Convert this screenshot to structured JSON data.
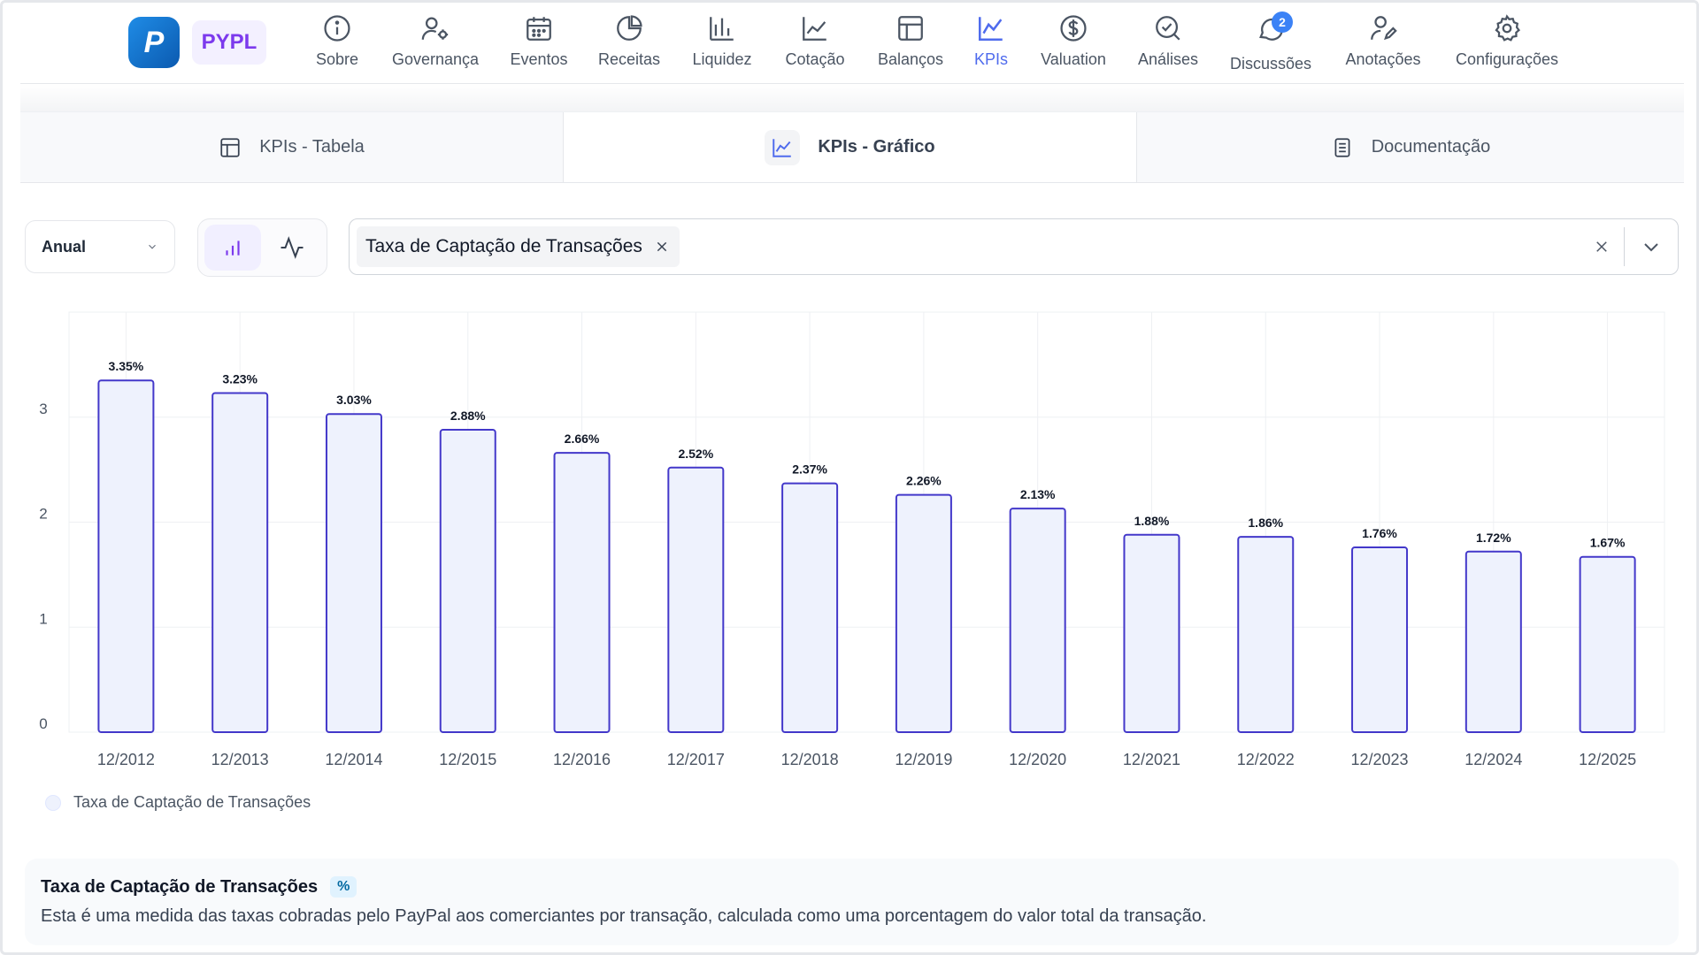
{
  "app": {
    "ticker": "PYPL",
    "logo_letter": "P"
  },
  "nav": {
    "items": [
      {
        "label": "Sobre",
        "icon": "info-icon"
      },
      {
        "label": "Governança",
        "icon": "user-gear-icon"
      },
      {
        "label": "Eventos",
        "icon": "calendar-icon"
      },
      {
        "label": "Receitas",
        "icon": "pie-chart-icon"
      },
      {
        "label": "Liquidez",
        "icon": "bar-chart-icon"
      },
      {
        "label": "Cotação",
        "icon": "line-chart-icon"
      },
      {
        "label": "Balanços",
        "icon": "layout-icon"
      },
      {
        "label": "KPIs",
        "icon": "kpi-chart-icon",
        "active": true
      },
      {
        "label": "Valuation",
        "icon": "dollar-circle-icon"
      },
      {
        "label": "Análises",
        "icon": "search-check-icon"
      },
      {
        "label": "Discussões",
        "icon": "chat-icon",
        "badge": "2"
      },
      {
        "label": "Anotações",
        "icon": "user-pen-icon"
      },
      {
        "label": "Configurações",
        "icon": "gear-icon"
      }
    ]
  },
  "tabs": [
    {
      "label": "KPIs - Tabela",
      "icon": "table-icon"
    },
    {
      "label": "KPIs - Gráfico",
      "icon": "chart-icon",
      "active": true
    },
    {
      "label": "Documentação",
      "icon": "document-icon"
    }
  ],
  "controls": {
    "period": "Anual",
    "selected_kpi": "Taxa de Captação de Transações"
  },
  "colors": {
    "bar_fill": "#eef2fd",
    "bar_stroke": "#4338ca",
    "accent": "#4f6bed",
    "grid": "#eef0f3"
  },
  "chart_data": {
    "type": "bar",
    "categories": [
      "12/2012",
      "12/2013",
      "12/2014",
      "12/2015",
      "12/2016",
      "12/2017",
      "12/2018",
      "12/2019",
      "12/2020",
      "12/2021",
      "12/2022",
      "12/2023",
      "12/2024",
      "12/2025"
    ],
    "series": [
      {
        "name": "Taxa de Captação de Transações",
        "values": [
          3.35,
          3.23,
          3.03,
          2.88,
          2.66,
          2.52,
          2.37,
          2.26,
          2.13,
          1.88,
          1.86,
          1.76,
          1.72,
          1.67
        ],
        "labels": [
          "3.35%",
          "3.23%",
          "3.03%",
          "2.88%",
          "2.66%",
          "2.52%",
          "2.37%",
          "2.26%",
          "2.13%",
          "1.88%",
          "1.86%",
          "1.76%",
          "1.72%",
          "1.67%"
        ]
      }
    ],
    "yticks": [
      "0",
      "1",
      "2",
      "3"
    ],
    "ylim": [
      0,
      4
    ],
    "grid": true,
    "legend": "bottom-left"
  },
  "description": {
    "title": "Taxa de Captação de Transações",
    "unit": "%",
    "text": "Esta é uma medida das taxas cobradas pelo PayPal aos comerciantes por transação, calculada como uma porcentagem do valor total da transação."
  }
}
